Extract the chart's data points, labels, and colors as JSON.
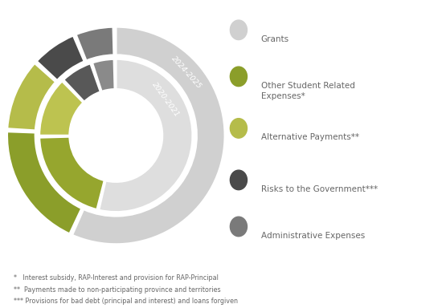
{
  "outer_label": "2024-2025",
  "inner_label": "2020-2021",
  "categories": [
    "Grants",
    "Other Student Related\nExpenses*",
    "Alternative Payments**",
    "Risks to the Government***",
    "Administrative Expenses"
  ],
  "outer_values": [
    57,
    19,
    11,
    7,
    6
  ],
  "inner_values": [
    54,
    21,
    13,
    7,
    5
  ],
  "outer_colors": [
    "#d0d0d0",
    "#8b9e2a",
    "#b5bc4a",
    "#4a4a4a",
    "#7a7a7a"
  ],
  "inner_colors": [
    "#dedede",
    "#96a62e",
    "#bdc350",
    "#585858",
    "#8a8a8a"
  ],
  "legend_colors": [
    "#d0d0d0",
    "#8b9e2a",
    "#b5bc4a",
    "#4a4a4a",
    "#7a7a7a"
  ],
  "background_color": "#ffffff",
  "label_color": "#ffffff",
  "text_color": "#666666",
  "footnotes": [
    "*   Interest subsidy, RAP-Interest and provision for RAP-Principal",
    "**  Payments made to non-participating province and territories",
    "*** Provisions for bad debt (principal and interest) and loans forgiven"
  ]
}
